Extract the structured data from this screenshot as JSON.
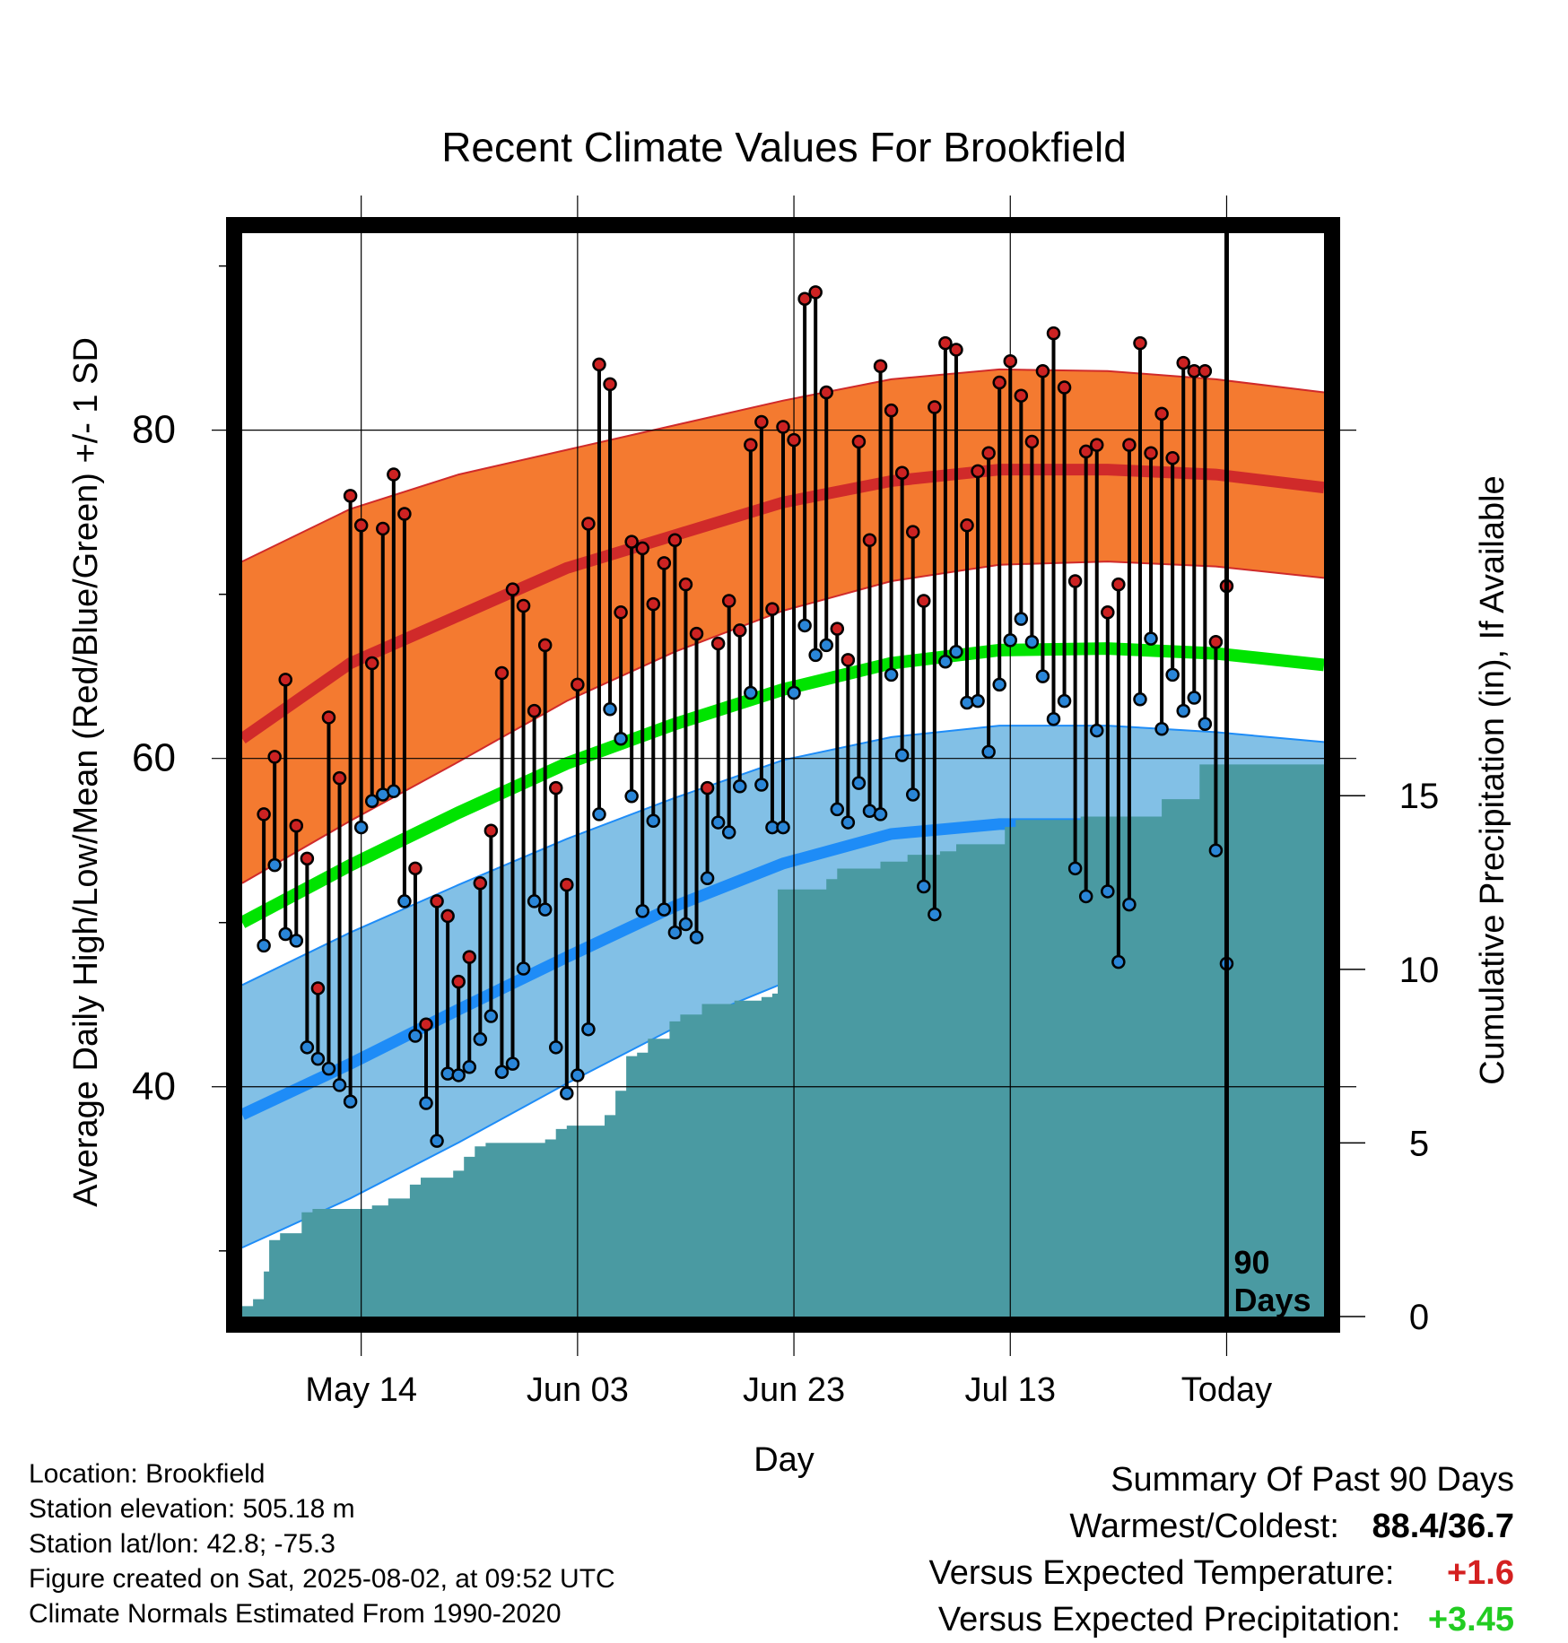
{
  "chart_data": {
    "type": "line",
    "title": "Recent Climate Values For Brookfield",
    "xlabel": "Day",
    "ylabel": "Average Daily High/Low/Mean (Red/Blue/Green) +/- 1 SD",
    "ylabel_right": "Cumulative Precipitation (in), If Available",
    "x_tick_labels": [
      "May 14",
      "Jun 03",
      "Jun 23",
      "Jul 13",
      "Today"
    ],
    "x_tick_days": [
      10,
      30,
      50,
      70,
      90
    ],
    "x_range_days": [
      -1,
      99
    ],
    "y_ticks": [
      40,
      60,
      80
    ],
    "y_range": [
      26,
      92
    ],
    "y_right_ticks": [
      0,
      5,
      10,
      15
    ],
    "y_right_range": [
      0,
      31.2
    ],
    "today_label": "90\nDays",
    "grid": true,
    "colors": {
      "high_band": "#f47a30",
      "high_line": "#d02a2a",
      "high_marker": "#cc2222",
      "low_band": "#82c0e6",
      "low_line": "#1e8cf7",
      "low_marker": "#2a86d8",
      "mean_line": "#00e400",
      "precip": "#4a9aa2"
    },
    "normals": {
      "days": [
        -1,
        9,
        19,
        29,
        39,
        49,
        59,
        69,
        79,
        89,
        99
      ],
      "high_mean": [
        61.2,
        65.8,
        68.7,
        71.6,
        73.6,
        75.6,
        76.9,
        77.6,
        77.6,
        77.3,
        76.5
      ],
      "high_upper": [
        72.0,
        75.2,
        77.3,
        78.8,
        80.3,
        81.8,
        83.1,
        83.7,
        83.6,
        83.1,
        82.3
      ],
      "high_lower": [
        52.4,
        56.2,
        59.8,
        63.5,
        66.5,
        69.0,
        70.8,
        71.8,
        72.0,
        71.7,
        71.0
      ],
      "mean": [
        50.0,
        53.5,
        56.7,
        59.7,
        62.1,
        64.2,
        65.8,
        66.6,
        66.7,
        66.4,
        65.7
      ],
      "low_mean": [
        38.3,
        41.4,
        44.7,
        47.9,
        51.0,
        53.6,
        55.4,
        56.0,
        56.0,
        55.6,
        55.0
      ],
      "low_upper": [
        46.2,
        49.4,
        52.3,
        55.1,
        57.6,
        59.9,
        61.3,
        62.0,
        62.0,
        61.6,
        61.0
      ],
      "low_lower": [
        30.2,
        33.2,
        36.6,
        40.2,
        43.6,
        46.3,
        48.2,
        49.0,
        49.2,
        48.9,
        48.5
      ]
    },
    "series": [
      {
        "name": "High",
        "values": [
          56.6,
          60.1,
          64.8,
          55.9,
          53.9,
          46.0,
          62.5,
          58.8,
          76.0,
          74.2,
          65.8,
          74.0,
          77.3,
          74.9,
          53.3,
          43.8,
          51.3,
          50.4,
          46.4,
          47.9,
          52.4,
          55.6,
          65.2,
          70.3,
          69.3,
          62.9,
          66.9,
          58.2,
          52.3,
          64.5,
          74.3,
          84.0,
          82.8,
          68.9,
          73.2,
          72.8,
          69.4,
          71.9,
          73.3,
          70.6,
          67.6,
          58.2,
          67.0,
          69.6,
          67.8,
          79.1,
          80.5,
          69.1,
          80.2,
          79.4,
          88.0,
          88.4,
          82.3,
          67.9,
          66.0,
          79.3,
          73.3,
          83.9,
          81.2,
          77.4,
          73.8,
          69.6,
          81.4,
          85.3,
          84.9,
          74.2,
          77.5,
          78.6,
          82.9,
          84.2,
          82.1,
          79.3,
          83.6,
          85.9,
          82.6,
          70.8,
          78.7,
          79.1,
          68.9,
          70.6,
          79.1,
          85.3,
          78.6,
          81.0,
          78.3,
          84.1,
          83.6,
          83.6,
          67.1,
          70.5
        ],
        "marker_color": "#cc2222"
      },
      {
        "name": "Low",
        "values": [
          48.6,
          53.5,
          49.3,
          48.9,
          42.4,
          41.7,
          41.1,
          40.1,
          39.1,
          55.8,
          57.4,
          57.8,
          58.0,
          51.3,
          43.1,
          39.0,
          36.7,
          40.8,
          40.7,
          41.2,
          42.9,
          44.3,
          40.9,
          41.4,
          47.2,
          51.3,
          50.8,
          42.4,
          39.6,
          40.7,
          43.5,
          56.6,
          63.0,
          61.2,
          57.7,
          50.7,
          56.2,
          50.8,
          49.4,
          49.9,
          49.1,
          52.7,
          56.1,
          55.5,
          58.3,
          64.0,
          58.4,
          55.8,
          55.8,
          64.0,
          68.1,
          66.3,
          66.9,
          56.9,
          56.1,
          58.5,
          56.8,
          56.6,
          65.1,
          60.2,
          57.8,
          52.2,
          50.5,
          65.9,
          66.5,
          63.4,
          63.5,
          60.4,
          64.5,
          67.2,
          68.5,
          67.1,
          65.0,
          62.4,
          63.5,
          53.3,
          51.6,
          61.7,
          51.9,
          47.6,
          51.1,
          63.6,
          67.3,
          61.8,
          65.1,
          62.9,
          63.7,
          62.1,
          54.4,
          47.5
        ],
        "marker_color": "#2a86d8"
      },
      {
        "name": "Cumulative Precipitation",
        "steps": [
          [
            -1.0,
            0.3
          ],
          [
            0.0,
            0.5
          ],
          [
            0.5,
            0.5
          ],
          [
            1.0,
            1.3
          ],
          [
            1.5,
            2.2
          ],
          [
            2.5,
            2.4
          ],
          [
            3.5,
            2.4
          ],
          [
            4.5,
            3.0
          ],
          [
            5.5,
            3.1
          ],
          [
            7.0,
            3.1
          ],
          [
            10.0,
            3.1
          ],
          [
            11.0,
            3.2
          ],
          [
            12.5,
            3.4
          ],
          [
            14.5,
            3.8
          ],
          [
            15.5,
            4.0
          ],
          [
            17.0,
            4.0
          ],
          [
            18.5,
            4.2
          ],
          [
            19.5,
            4.6
          ],
          [
            20.5,
            4.9
          ],
          [
            21.5,
            5.0
          ],
          [
            25.5,
            5.0
          ],
          [
            27.0,
            5.1
          ],
          [
            28.0,
            5.4
          ],
          [
            29.0,
            5.5
          ],
          [
            31.5,
            5.5
          ],
          [
            32.5,
            5.8
          ],
          [
            33.5,
            6.5
          ],
          [
            34.5,
            7.5
          ],
          [
            35.5,
            7.6
          ],
          [
            36.5,
            8.0
          ],
          [
            37.5,
            8.0
          ],
          [
            38.5,
            8.5
          ],
          [
            39.5,
            8.7
          ],
          [
            40.5,
            8.7
          ],
          [
            41.5,
            9.0
          ],
          [
            42.5,
            9.0
          ],
          [
            44.5,
            9.1
          ],
          [
            46.0,
            9.1
          ],
          [
            47.0,
            9.2
          ],
          [
            48.0,
            9.3
          ],
          [
            48.5,
            12.3
          ],
          [
            52.0,
            12.3
          ],
          [
            53.0,
            12.6
          ],
          [
            54.0,
            12.9
          ],
          [
            56.5,
            12.9
          ],
          [
            58.0,
            13.1
          ],
          [
            60.0,
            13.1
          ],
          [
            60.5,
            13.3
          ],
          [
            62.5,
            13.3
          ],
          [
            63.5,
            13.4
          ],
          [
            64.5,
            13.4
          ],
          [
            65.0,
            13.6
          ],
          [
            67.0,
            13.6
          ],
          [
            68.0,
            13.6
          ],
          [
            69.5,
            14.1
          ],
          [
            70.5,
            14.3
          ],
          [
            74.5,
            14.3
          ],
          [
            76.5,
            14.4
          ],
          [
            82.0,
            14.4
          ],
          [
            83.0,
            14.4
          ],
          [
            84.0,
            14.9
          ],
          [
            86.0,
            14.9
          ],
          [
            87.0,
            14.9
          ],
          [
            87.5,
            15.9
          ],
          [
            99.0,
            15.9
          ]
        ],
        "color": "#4a9aa2"
      }
    ]
  },
  "info": {
    "location": "Location: Brookfield",
    "elevation": "Station elevation: 505.18 m",
    "latlon": "Station lat/lon: 42.8; -75.3",
    "created": "Figure created on Sat, 2025-08-02, at 09:52 UTC",
    "normals": "Climate Normals Estimated From 1990-2020"
  },
  "summary": {
    "heading": "Summary Of Past 90 Days",
    "extremes_label": "Warmest/Coldest:",
    "warmest": "88.4",
    "slash": "/",
    "coldest": "36.7",
    "temp_label": "Versus Expected Temperature:",
    "temp_value": "+1.6",
    "temp_color": "#d42020",
    "precip_label": "Versus Expected Precipitation:",
    "precip_value": "+3.45",
    "precip_color": "#22cc22"
  }
}
